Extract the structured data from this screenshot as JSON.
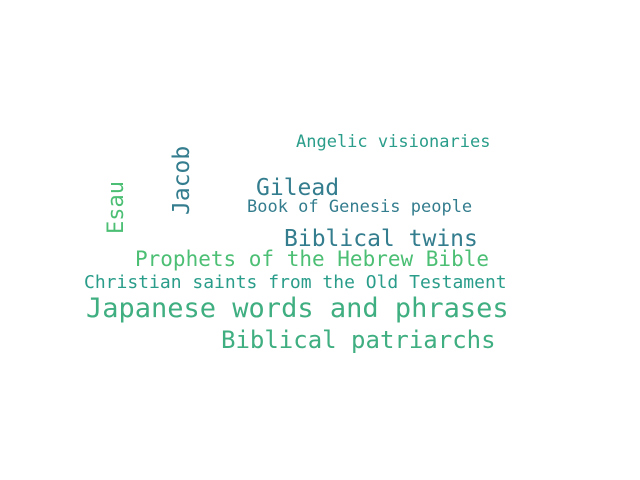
{
  "colors": {
    "background": "#ffffff",
    "teal": "#2a9d8a",
    "steel": "#347d8e",
    "green": "#4cbf74",
    "seagreen": "#3fae80"
  },
  "words": {
    "angelic": "Angelic visionaries",
    "gilead": "Gilead",
    "genesis": "Book of Genesis people",
    "twins": "Biblical twins",
    "prophets": "Prophets of the Hebrew Bible",
    "saints": "Christian saints from the Old Testament",
    "japanese": "Japanese words and phrases",
    "patriarchs": "Biblical patriarchs",
    "jacob": "Jacob",
    "esau": "Esau"
  }
}
